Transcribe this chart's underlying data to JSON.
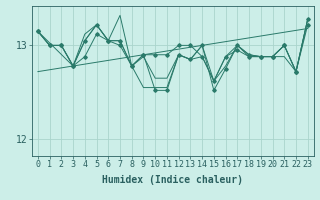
{
  "xlabel": "Humidex (Indice chaleur)",
  "bg_color": "#cceee8",
  "line_color": "#2a7a6a",
  "grid_color": "#aad4cc",
  "tick_color": "#2a6060",
  "ylim": [
    11.82,
    13.42
  ],
  "xlim": [
    -0.5,
    23.5
  ],
  "yticks": [
    12,
    13
  ],
  "xticks": [
    0,
    1,
    2,
    3,
    4,
    5,
    6,
    7,
    8,
    9,
    10,
    11,
    12,
    13,
    14,
    15,
    16,
    17,
    18,
    19,
    20,
    21,
    22,
    23
  ],
  "series_a_x": [
    0,
    1,
    2,
    3,
    4,
    5,
    6,
    7,
    8,
    9,
    10,
    11,
    12,
    13,
    14,
    15,
    16,
    17,
    18,
    19,
    20,
    21,
    22,
    23
  ],
  "series_a_y": [
    13.15,
    13.0,
    13.0,
    12.78,
    12.88,
    13.12,
    13.05,
    13.0,
    12.78,
    12.9,
    12.9,
    12.9,
    13.0,
    13.0,
    12.88,
    12.62,
    12.88,
    12.95,
    12.88,
    12.88,
    12.88,
    13.0,
    12.72,
    13.22
  ],
  "series_b_x": [
    0,
    1,
    2,
    3,
    4,
    5,
    6,
    7,
    8,
    9,
    10,
    11,
    12,
    13,
    14,
    15,
    16,
    17,
    18,
    19,
    20,
    21,
    22,
    23
  ],
  "series_b_y": [
    13.15,
    13.0,
    13.0,
    12.78,
    13.12,
    13.22,
    13.05,
    13.05,
    12.78,
    12.88,
    12.65,
    12.65,
    12.9,
    12.85,
    12.88,
    12.62,
    12.88,
    13.0,
    12.88,
    12.88,
    12.88,
    13.0,
    12.72,
    13.28
  ],
  "series_c_x": [
    0,
    3,
    4,
    5,
    6,
    7,
    8,
    9,
    10,
    11,
    12,
    13,
    14,
    15,
    16,
    17,
    18,
    19,
    20,
    21,
    22,
    23
  ],
  "series_c_y": [
    13.15,
    12.78,
    13.05,
    13.22,
    13.05,
    13.32,
    12.78,
    12.55,
    12.55,
    12.55,
    12.9,
    12.85,
    13.0,
    12.62,
    12.78,
    13.0,
    12.9,
    12.88,
    12.88,
    12.88,
    12.72,
    13.28
  ],
  "series_main_x": [
    0,
    1,
    2,
    3,
    4,
    5,
    6,
    7,
    8,
    9,
    10,
    11,
    12,
    13,
    14,
    15,
    16,
    17,
    18,
    19,
    20,
    21,
    22,
    23
  ],
  "series_main_y": [
    13.15,
    13.0,
    13.0,
    12.78,
    13.05,
    13.22,
    13.05,
    13.05,
    12.78,
    12.9,
    12.52,
    12.52,
    12.9,
    12.85,
    13.0,
    12.52,
    12.75,
    13.0,
    12.9,
    12.88,
    12.88,
    13.0,
    12.72,
    13.28
  ],
  "trend_x": [
    0,
    23
  ],
  "trend_y": [
    12.72,
    13.18
  ],
  "font_size": 7
}
